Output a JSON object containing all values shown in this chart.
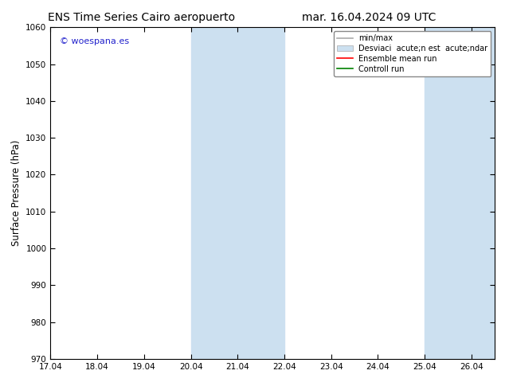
{
  "title_left": "ENS Time Series Cairo aeropuerto",
  "title_right": "mar. 16.04.2024 09 UTC",
  "ylabel": "Surface Pressure (hPa)",
  "ylim": [
    970,
    1060
  ],
  "yticks": [
    970,
    980,
    990,
    1000,
    1010,
    1020,
    1030,
    1040,
    1050,
    1060
  ],
  "xlim_min": 0,
  "xlim_max": 9.5,
  "xtick_labels": [
    "17.04",
    "18.04",
    "19.04",
    "20.04",
    "21.04",
    "22.04",
    "23.04",
    "24.04",
    "25.04",
    "26.04"
  ],
  "xtick_positions": [
    0,
    1,
    2,
    3,
    4,
    5,
    6,
    7,
    8,
    9
  ],
  "shade_bands": [
    {
      "xmin": 3.0,
      "xmax": 5.0,
      "color": "#cce0f0",
      "alpha": 1.0
    },
    {
      "xmin": 8.0,
      "xmax": 9.5,
      "color": "#cce0f0",
      "alpha": 1.0
    }
  ],
  "legend_items": [
    {
      "label": "min/max",
      "color": "#aaaaaa",
      "lw": 1.2,
      "style": "line"
    },
    {
      "label": "Desviaci  acute;n est  acute;ndar",
      "color": "#cce0f0",
      "style": "band"
    },
    {
      "label": "Ensemble mean run",
      "color": "#ff0000",
      "lw": 1.2,
      "style": "line"
    },
    {
      "label": "Controll run",
      "color": "#008000",
      "lw": 1.2,
      "style": "line"
    }
  ],
  "watermark_text": "© woespana.es",
  "watermark_color": "#2222cc",
  "bg_color": "#ffffff",
  "title_fontsize": 10,
  "axis_fontsize": 8.5,
  "tick_fontsize": 7.5,
  "legend_fontsize": 7,
  "watermark_fontsize": 8
}
